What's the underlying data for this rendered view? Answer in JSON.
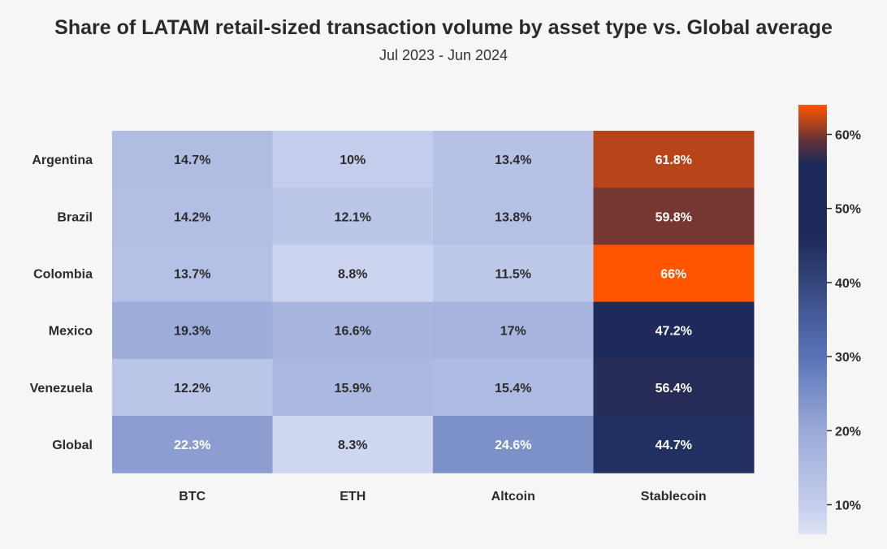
{
  "chart_data": {
    "type": "heatmap",
    "title": "Share of LATAM retail-sized transaction volume by asset type vs. Global average",
    "subtitle": "Jul 2023 - Jun 2024",
    "rows": [
      "Argentina",
      "Brazil",
      "Colombia",
      "Mexico",
      "Venezuela",
      "Global"
    ],
    "columns": [
      "BTC",
      "ETH",
      "Altcoin",
      "Stablecoin"
    ],
    "values": [
      [
        14.7,
        10,
        13.4,
        61.8
      ],
      [
        14.2,
        12.1,
        13.8,
        59.8
      ],
      [
        13.7,
        8.8,
        11.5,
        66
      ],
      [
        19.3,
        16.6,
        17,
        47.2
      ],
      [
        12.2,
        15.9,
        15.4,
        56.4
      ],
      [
        22.3,
        8.3,
        24.6,
        44.7
      ]
    ],
    "cell_labels": [
      [
        "14.7%",
        "10%",
        "13.4%",
        "61.8%"
      ],
      [
        "14.2%",
        "12.1%",
        "13.8%",
        "59.8%"
      ],
      [
        "13.7%",
        "8.8%",
        "11.5%",
        "66%"
      ],
      [
        "19.3%",
        "16.6%",
        "17%",
        "47.2%"
      ],
      [
        "12.2%",
        "15.9%",
        "15.4%",
        "56.4%"
      ],
      [
        "22.3%",
        "8.3%",
        "24.6%",
        "44.7%"
      ]
    ],
    "colorbar": {
      "range": [
        6,
        64
      ],
      "ticks": [
        10,
        20,
        30,
        40,
        50,
        60
      ],
      "tick_labels": [
        "10%",
        "20%",
        "30%",
        "40%",
        "50%",
        "60%"
      ],
      "colors": {
        "very_light": "#dde3f5",
        "light": "#c4cdec",
        "medium_light": "#9aaad8",
        "medium": "#5a73b8",
        "navy": "#1e2b5a",
        "brown": "#5d313a",
        "orange": "#ff5500"
      }
    }
  }
}
